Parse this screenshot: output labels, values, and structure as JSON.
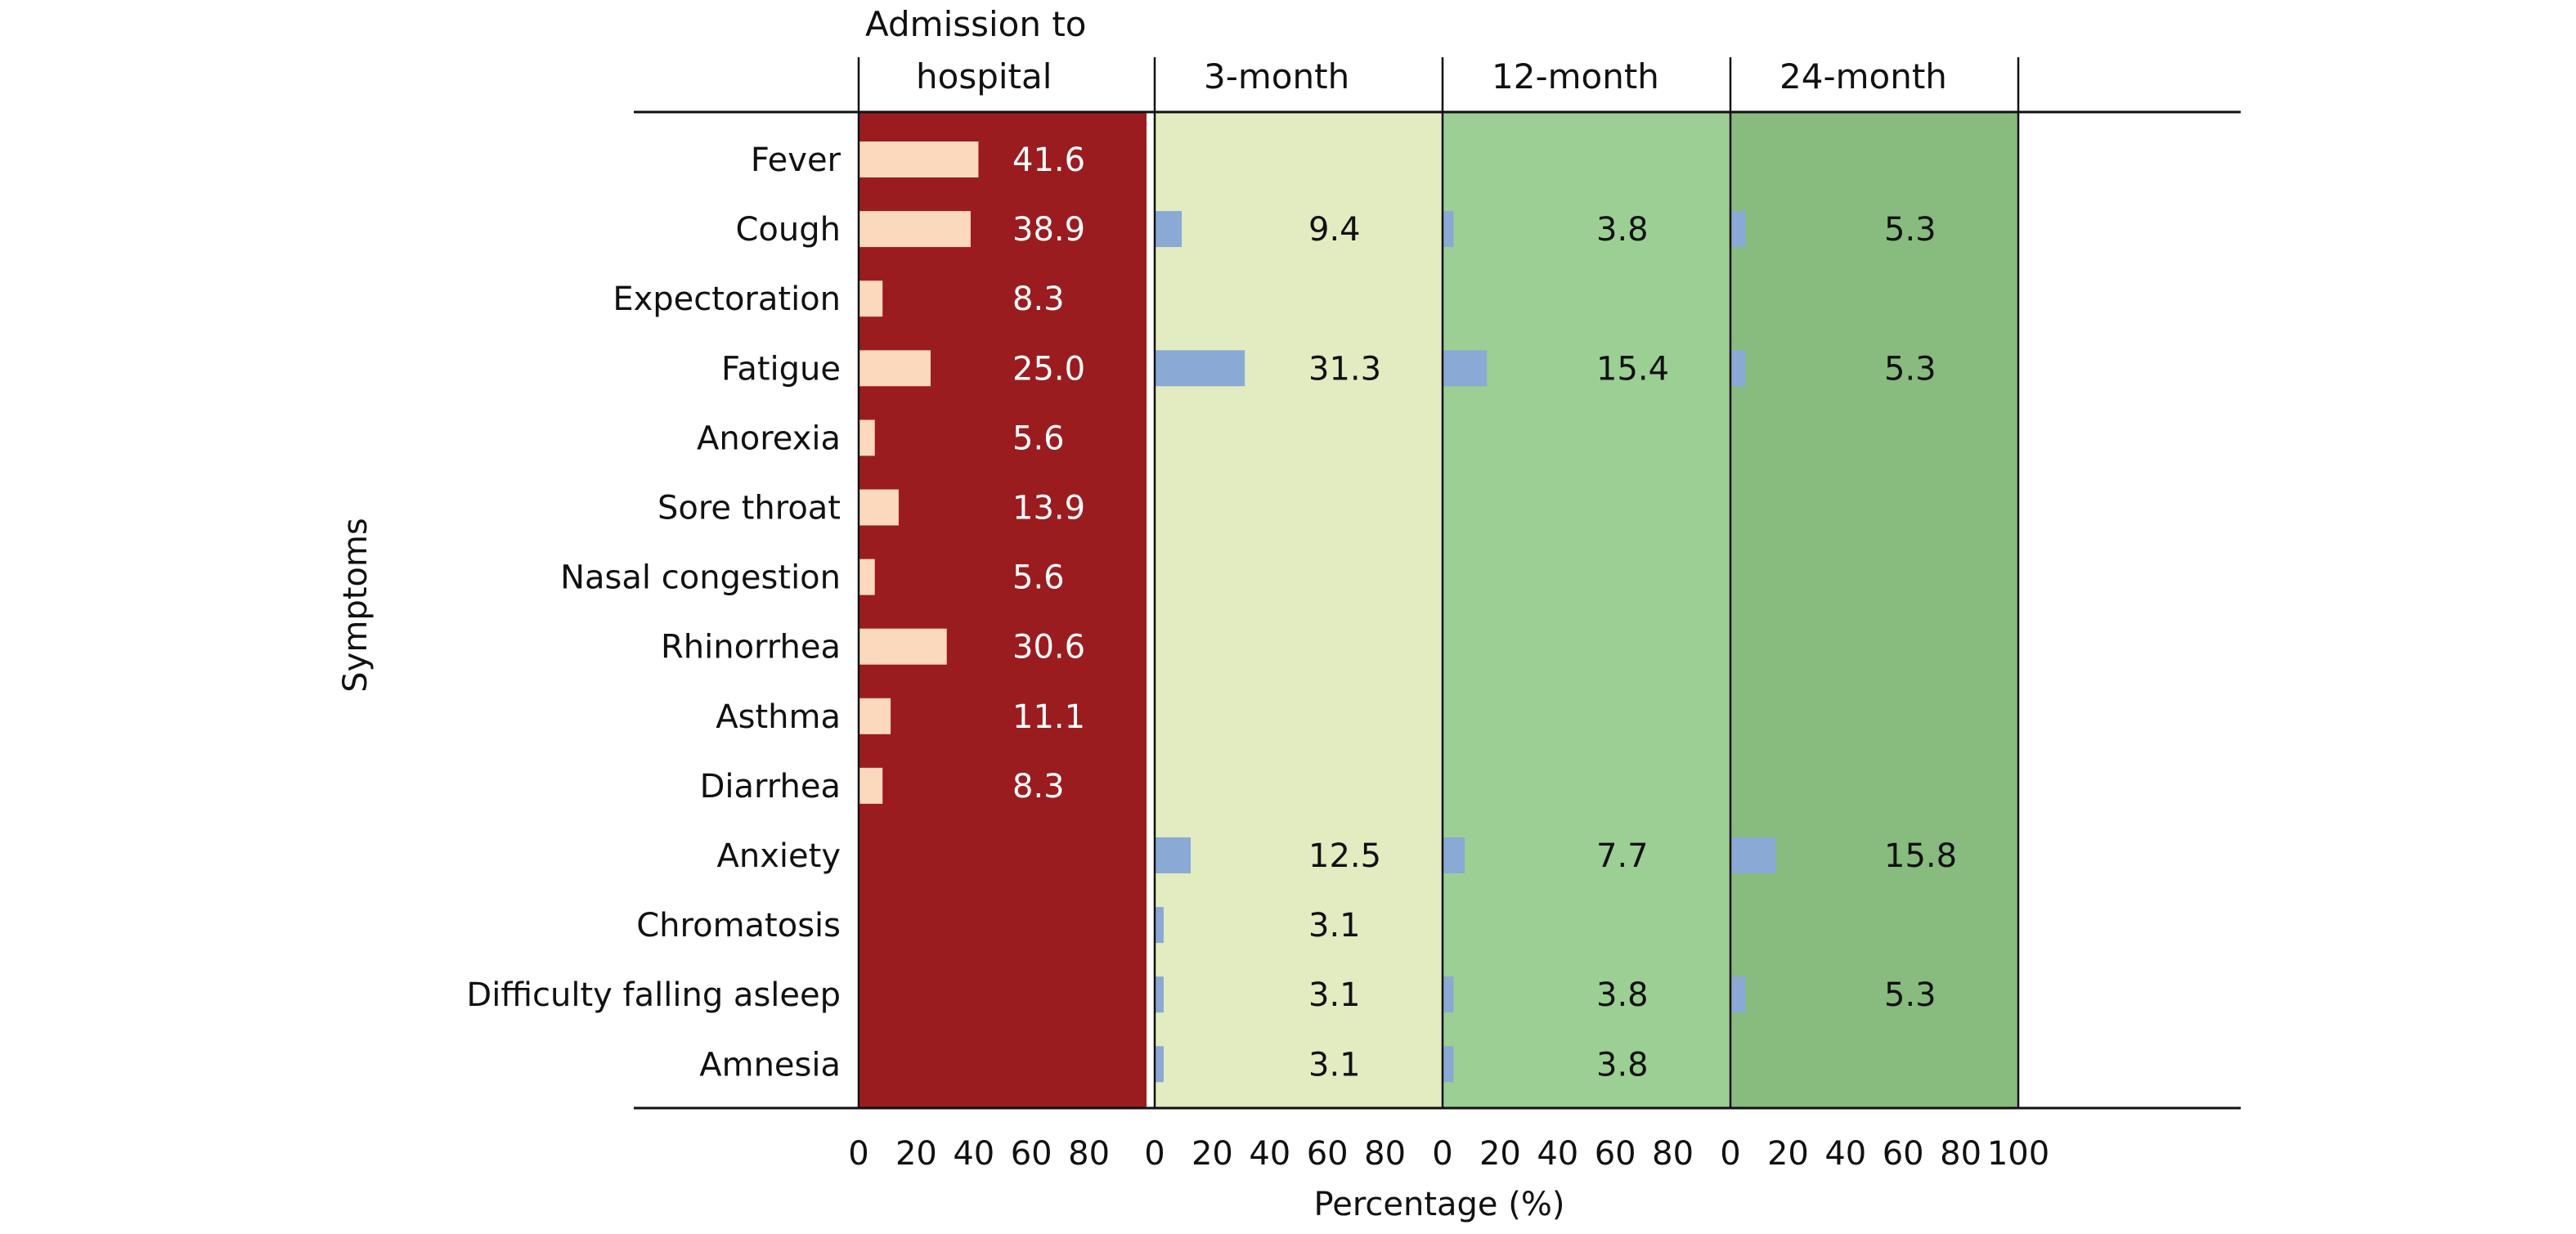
{
  "chart_data": {
    "type": "bar",
    "orientation": "horizontal",
    "ylabel": "Symptoms",
    "xlabel": "Percentage (%)",
    "categories": [
      "Fever",
      "Cough",
      "Expectoration",
      "Fatigue",
      "Anorexia",
      "Sore throat",
      "Nasal congestion",
      "Rhinorrhea",
      "Asthma",
      "Diarrhea",
      "Anxiety",
      "Chromatosis",
      "Difficulty falling asleep",
      "Amnesia"
    ],
    "x_ticks": [
      0,
      20,
      40,
      60,
      80
    ],
    "last_tick": 100,
    "xlim": [
      0,
      100
    ],
    "panels": [
      {
        "name": "Admission to hospital",
        "title_lines": [
          "Admission to",
          "hospital"
        ],
        "bg_color": "#9b1c1f",
        "bar_color": "#fbd9bd",
        "label_color": "#ffffff",
        "values": [
          41.6,
          38.9,
          8.3,
          25.0,
          5.6,
          13.9,
          5.6,
          30.6,
          11.1,
          8.3,
          null,
          null,
          null,
          null
        ],
        "labels": [
          "41.6",
          "38.9",
          "8.3",
          "25.0",
          "5.6",
          "13.9",
          "5.6",
          "30.6",
          "11.1",
          "8.3",
          "",
          "",
          "",
          ""
        ]
      },
      {
        "name": "3-month",
        "title_lines": [
          "3-month"
        ],
        "bg_color": "#e3ebc0",
        "bar_color": "#8aa9d4",
        "label_color": "#111111",
        "values": [
          null,
          9.4,
          null,
          31.3,
          null,
          null,
          null,
          null,
          null,
          null,
          12.5,
          3.1,
          3.1,
          3.1
        ],
        "labels": [
          "",
          "9.4",
          "",
          "31.3",
          "",
          "",
          "",
          "",
          "",
          "",
          "12.5",
          "3.1",
          "3.1",
          "3.1"
        ]
      },
      {
        "name": "12-month",
        "title_lines": [
          "12-month"
        ],
        "bg_color": "#9ccf93",
        "bar_color": "#8aa9d4",
        "label_color": "#111111",
        "values": [
          null,
          3.8,
          null,
          15.4,
          null,
          null,
          null,
          null,
          null,
          null,
          7.7,
          null,
          3.8,
          3.8
        ],
        "labels": [
          "",
          "3.8",
          "",
          "15.4",
          "",
          "",
          "",
          "",
          "",
          "",
          "7.7",
          "",
          "3.8",
          "3.8"
        ]
      },
      {
        "name": "24-month",
        "title_lines": [
          "24-month"
        ],
        "bg_color": "#88bb7e",
        "bar_color": "#8aa9d4",
        "label_color": "#111111",
        "values": [
          null,
          5.3,
          null,
          5.3,
          null,
          null,
          null,
          null,
          null,
          null,
          15.8,
          null,
          5.3,
          null
        ],
        "labels": [
          "",
          "5.3",
          "",
          "5.3",
          "",
          "",
          "",
          "",
          "",
          "",
          "15.8",
          "",
          "5.3",
          ""
        ]
      }
    ]
  }
}
